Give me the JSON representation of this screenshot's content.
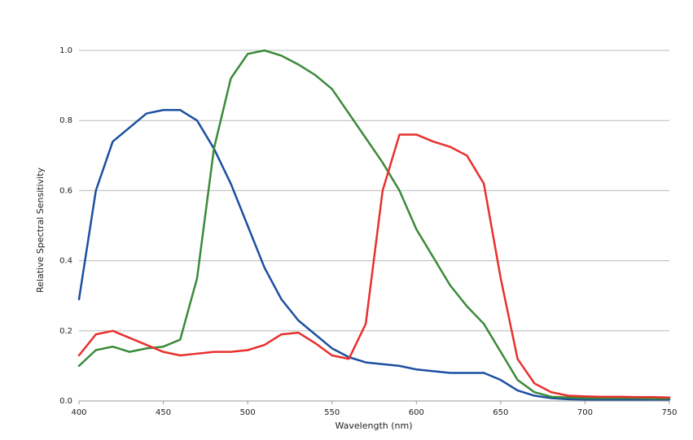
{
  "chart_data": {
    "type": "line",
    "x_label": "Wavelength (nm)",
    "y_label": "Relative Spectral Sensitivity",
    "x": [
      400,
      410,
      420,
      430,
      440,
      450,
      460,
      470,
      480,
      490,
      500,
      510,
      520,
      530,
      540,
      550,
      560,
      570,
      580,
      590,
      600,
      610,
      620,
      630,
      640,
      650,
      660,
      670,
      680,
      690,
      700,
      710,
      720,
      730,
      740,
      750
    ],
    "series": [
      {
        "color": "#1c4fa0",
        "values": [
          0.29,
          0.6,
          0.74,
          0.78,
          0.82,
          0.83,
          0.83,
          0.8,
          0.72,
          0.62,
          0.5,
          0.38,
          0.29,
          0.23,
          0.19,
          0.15,
          0.125,
          0.11,
          0.105,
          0.1,
          0.09,
          0.085,
          0.08,
          0.08,
          0.08,
          0.06,
          0.03,
          0.015,
          0.008,
          0.005,
          0.004,
          0.004,
          0.004,
          0.004,
          0.004,
          0.004
        ]
      },
      {
        "color": "#3a8a3a",
        "values": [
          0.1,
          0.145,
          0.155,
          0.14,
          0.15,
          0.155,
          0.175,
          0.35,
          0.72,
          0.92,
          0.99,
          1.0,
          0.985,
          0.96,
          0.93,
          0.89,
          0.82,
          0.75,
          0.68,
          0.6,
          0.49,
          0.41,
          0.33,
          0.27,
          0.22,
          0.14,
          0.06,
          0.025,
          0.012,
          0.01,
          0.008,
          0.008,
          0.008,
          0.008,
          0.007,
          0.007
        ]
      },
      {
        "color": "#e8302d",
        "values": [
          0.13,
          0.19,
          0.2,
          0.18,
          0.16,
          0.14,
          0.13,
          0.135,
          0.14,
          0.14,
          0.145,
          0.16,
          0.19,
          0.195,
          0.165,
          0.13,
          0.12,
          0.22,
          0.6,
          0.76,
          0.76,
          0.74,
          0.725,
          0.7,
          0.62,
          0.35,
          0.12,
          0.05,
          0.025,
          0.015,
          0.013,
          0.012,
          0.012,
          0.011,
          0.011,
          0.01
        ]
      }
    ],
    "xlim": [
      400,
      750
    ],
    "xticks": [
      400,
      450,
      500,
      550,
      600,
      650,
      700,
      750
    ],
    "ylim": [
      0,
      1
    ],
    "yticks": [
      {
        "value": 0,
        "label": "0.0"
      },
      0.2,
      0.4,
      0.6,
      0.8,
      {
        "value": 1,
        "label": "1.0"
      }
    ],
    "grid": true
  }
}
